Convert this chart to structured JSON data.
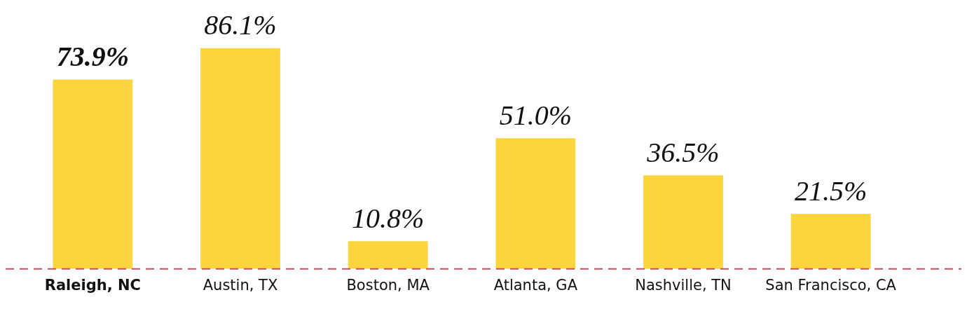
{
  "chart_data": {
    "type": "bar",
    "categories": [
      "Raleigh, NC",
      "Austin, TX",
      "Boston, MA",
      "Atlanta, GA",
      "Nashville, TN",
      "San Francisco, CA"
    ],
    "values": [
      73.9,
      86.1,
      10.8,
      51.0,
      36.5,
      21.5
    ],
    "value_labels": [
      "73.9%",
      "86.1%",
      "10.8%",
      "51.0%",
      "36.5%",
      "21.5%"
    ],
    "color": "#fcd43e",
    "ref_lines": [
      {
        "axis": "y",
        "value": 0,
        "color": "#d9485c",
        "line_style": "dashed"
      }
    ],
    "grid": false,
    "legend": false
  }
}
